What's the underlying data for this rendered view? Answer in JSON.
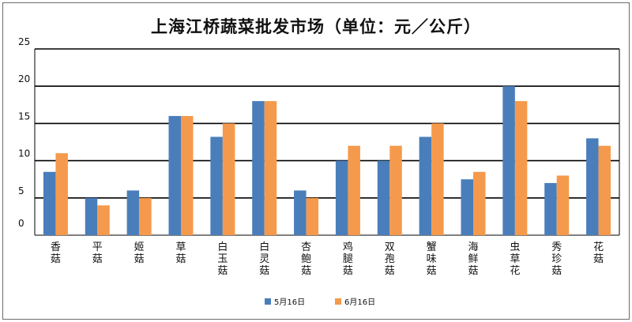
{
  "chart_data": {
    "type": "bar",
    "title": "上海江桥蔬菜批发市场（单位：元／公斤）",
    "xlabel": "",
    "ylabel": "",
    "ylim": [
      0,
      25
    ],
    "yticks": [
      0,
      5,
      10,
      15,
      20,
      25
    ],
    "categories": [
      "香菇",
      "平菇",
      "姬菇",
      "草菇",
      "白玉菇",
      "白灵菇",
      "杏鲍菇",
      "鸡腿菇",
      "双孢菇",
      "蟹味菇",
      "海鲜菇",
      "虫草花",
      "秀珍菇",
      "花菇"
    ],
    "series": [
      {
        "name": "5月16日",
        "color": "#4a7ebb",
        "values": [
          8.5,
          5,
          6,
          16,
          13.2,
          18,
          6,
          10,
          10,
          13.2,
          7.5,
          20,
          7,
          13
        ]
      },
      {
        "name": "6月16日",
        "color": "#f59a4c",
        "values": [
          11,
          4,
          5,
          16,
          15,
          18,
          5,
          12,
          12,
          15,
          8.5,
          18,
          8,
          12
        ]
      }
    ],
    "grid": true,
    "legend": "bottom"
  }
}
